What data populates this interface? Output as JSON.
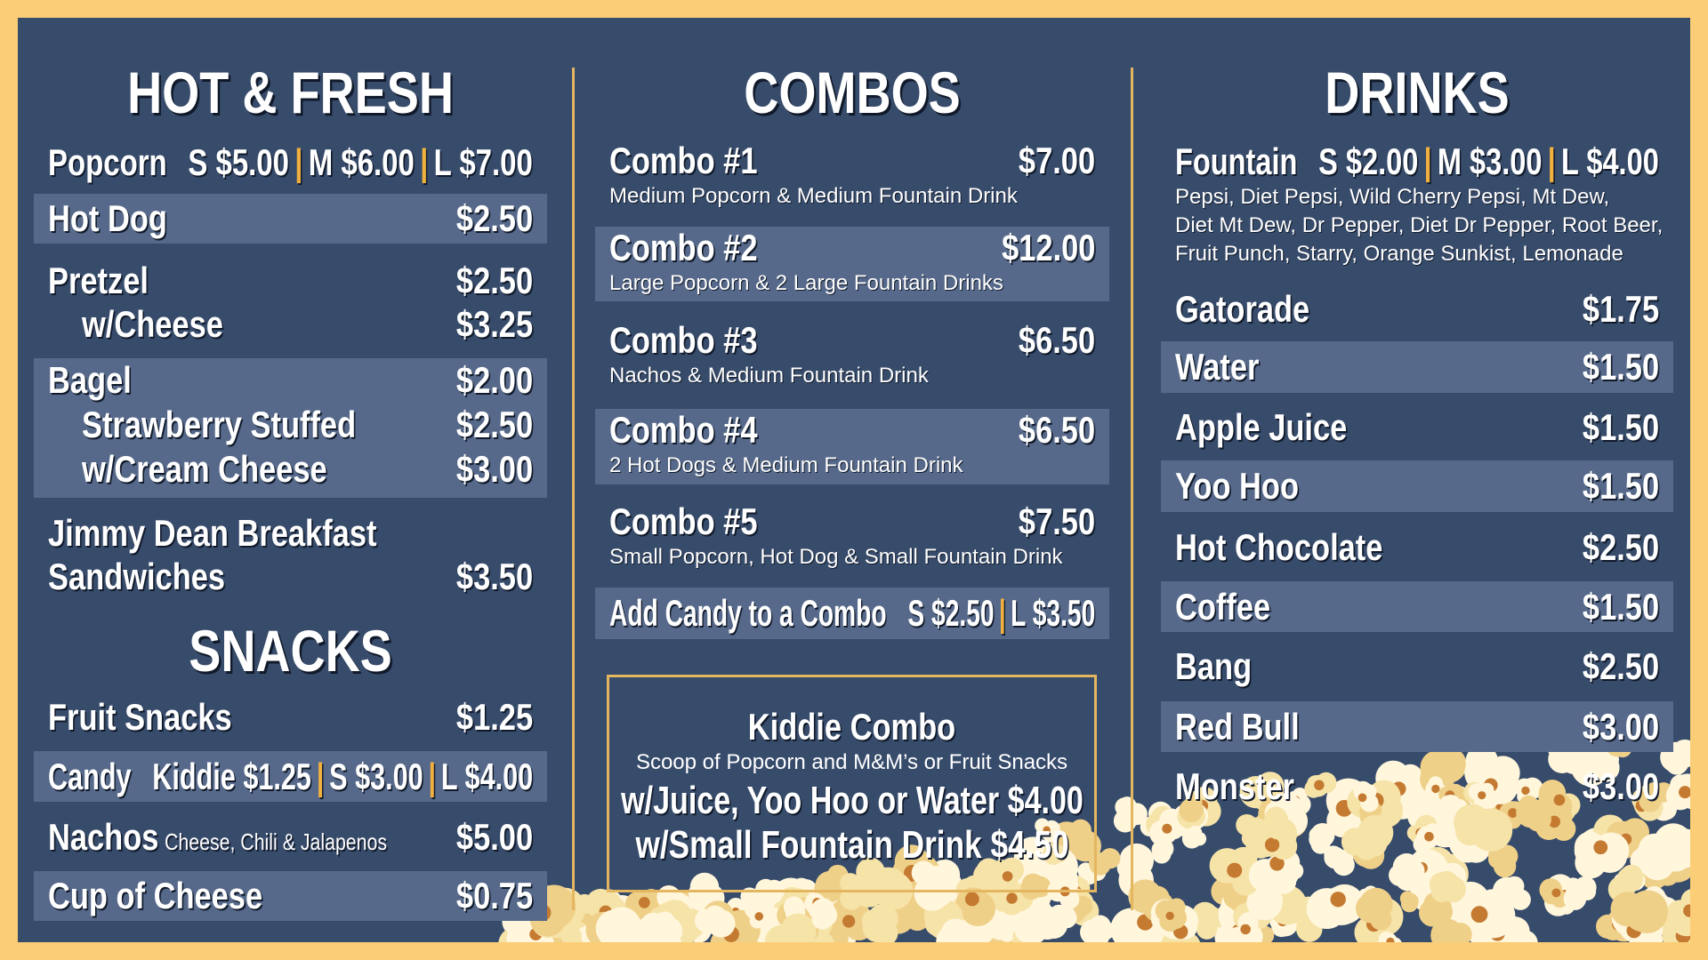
{
  "colors": {
    "border": "#fbcd76",
    "background": "#374b6b",
    "row_shade": "#56698a",
    "accent": "#e5b660"
  },
  "hot_fresh": {
    "heading": "HOT & FRESH",
    "items": [
      {
        "lines": [
          {
            "name": "Popcorn",
            "sizes": [
              {
                "size": "S",
                "price": "$5.00"
              },
              {
                "size": "M",
                "price": "$6.00"
              },
              {
                "size": "L",
                "price": "$7.00"
              }
            ]
          }
        ]
      },
      {
        "lines": [
          {
            "name": "Hot Dog",
            "price": "$2.50"
          }
        ]
      },
      {
        "lines": [
          {
            "name": "Pretzel",
            "price": "$2.50"
          },
          {
            "name": "w/Cheese",
            "price": "$3.25",
            "indent": true
          }
        ]
      },
      {
        "lines": [
          {
            "name": "Bagel",
            "price": "$2.00"
          },
          {
            "name": "Strawberry Stuffed",
            "price": "$2.50",
            "indent": true
          },
          {
            "name": "w/Cream Cheese",
            "price": "$3.00",
            "indent": true
          }
        ]
      },
      {
        "lines": [
          {
            "name": "Jimmy Dean Breakfast"
          },
          {
            "name": "Sandwiches",
            "price": "$3.50"
          }
        ]
      }
    ]
  },
  "snacks": {
    "heading": "SNACKS",
    "items": [
      {
        "lines": [
          {
            "name": "Fruit Snacks",
            "price": "$1.25"
          }
        ]
      },
      {
        "lines": [
          {
            "name": "Candy",
            "sizes": [
              {
                "size": "Kiddie",
                "price": "$1.25"
              },
              {
                "size": "S",
                "price": "$3.00"
              },
              {
                "size": "L",
                "price": "$4.00"
              }
            ]
          }
        ]
      },
      {
        "lines": [
          {
            "name": "Nachos",
            "note": "Cheese, Chili & Jalapenos",
            "price": "$5.00"
          }
        ]
      },
      {
        "lines": [
          {
            "name": "Cup of Cheese",
            "price": "$0.75"
          }
        ]
      }
    ]
  },
  "combos": {
    "heading": "COMBOS",
    "items": [
      {
        "lines": [
          {
            "name": "Combo #1",
            "price": "$7.00"
          }
        ],
        "desc": [
          "Medium Popcorn & Medium Fountain Drink"
        ]
      },
      {
        "lines": [
          {
            "name": "Combo #2",
            "price": "$12.00"
          }
        ],
        "desc": [
          "Large Popcorn & 2 Large Fountain Drinks"
        ]
      },
      {
        "lines": [
          {
            "name": "Combo #3",
            "price": "$6.50"
          }
        ],
        "desc": [
          "Nachos & Medium Fountain Drink"
        ]
      },
      {
        "lines": [
          {
            "name": "Combo #4",
            "price": "$6.50"
          }
        ],
        "desc": [
          "2 Hot Dogs & Medium Fountain Drink"
        ]
      },
      {
        "lines": [
          {
            "name": "Combo #5",
            "price": "$7.50"
          }
        ],
        "desc": [
          "Small Popcorn, Hot Dog & Small Fountain Drink"
        ]
      },
      {
        "lines": [
          {
            "name": "Add Candy to a Combo",
            "sizes": [
              {
                "size": "S",
                "price": "$2.50"
              },
              {
                "size": "L",
                "price": "$3.50"
              }
            ]
          }
        ]
      }
    ]
  },
  "kiddie": {
    "title": "Kiddie Combo",
    "subtitle": "Scoop of Popcorn and M&M’s or Fruit Snacks",
    "options": [
      {
        "label": "w/Juice, Yoo Hoo or Water",
        "price": "$4.00"
      },
      {
        "label": "w/Small Fountain Drink",
        "price": "$4.50"
      }
    ]
  },
  "drinks": {
    "heading": "DRINKS",
    "items": [
      {
        "lines": [
          {
            "name": "Fountain",
            "sizes": [
              {
                "size": "S",
                "price": "$2.00"
              },
              {
                "size": "M",
                "price": "$3.00"
              },
              {
                "size": "L",
                "price": "$4.00"
              }
            ]
          }
        ],
        "desc": [
          "Pepsi, Diet Pepsi, Wild Cherry Pepsi, Mt Dew,",
          "Diet Mt Dew, Dr Pepper, Diet Dr Pepper, Root Beer,",
          "Fruit Punch, Starry, Orange Sunkist, Lemonade"
        ]
      },
      {
        "lines": [
          {
            "name": "Gatorade",
            "price": "$1.75"
          }
        ]
      },
      {
        "lines": [
          {
            "name": "Water",
            "price": "$1.50"
          }
        ]
      },
      {
        "lines": [
          {
            "name": "Apple Juice",
            "price": "$1.50"
          }
        ]
      },
      {
        "lines": [
          {
            "name": "Yoo Hoo",
            "price": "$1.50"
          }
        ]
      },
      {
        "lines": [
          {
            "name": "Hot Chocolate",
            "price": "$2.50"
          }
        ]
      },
      {
        "lines": [
          {
            "name": "Coffee",
            "price": "$1.50"
          }
        ]
      },
      {
        "lines": [
          {
            "name": "Bang",
            "price": "$2.50"
          }
        ]
      },
      {
        "lines": [
          {
            "name": "Red Bull",
            "price": "$3.00"
          }
        ]
      },
      {
        "lines": [
          {
            "name": "Monster",
            "price": "$3.00"
          }
        ]
      }
    ]
  }
}
